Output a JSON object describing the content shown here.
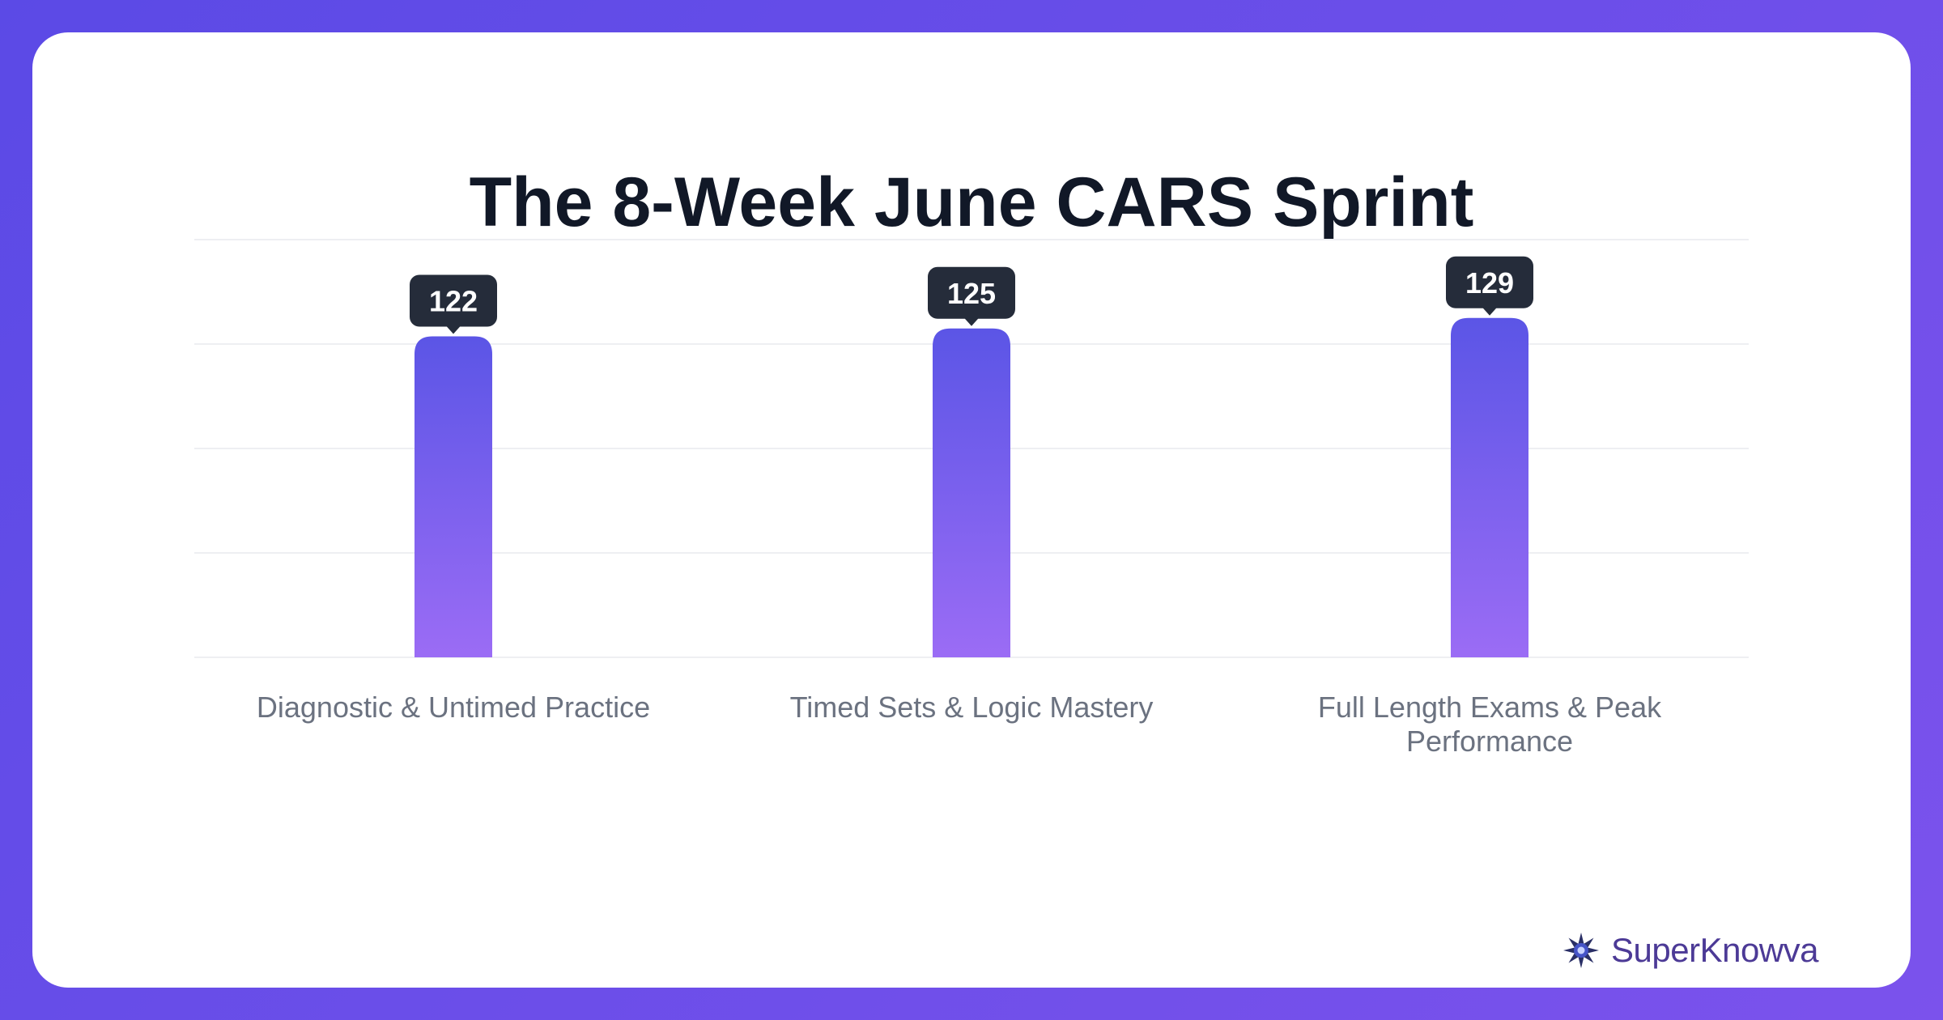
{
  "chart_data": {
    "type": "bar",
    "title": "The 8-Week June CARS Sprint",
    "xlabel": "",
    "ylabel": "",
    "categories": [
      "Diagnostic & Untimed Practice",
      "Timed Sets & Logic Mastery",
      "Full Length Exams & Peak Performance"
    ],
    "values": [
      122,
      125,
      129
    ],
    "ylim": [
      0,
      135
    ],
    "grid": true,
    "legend": "none",
    "data_labels": true,
    "colors": {
      "bar_top": "#5b55e6",
      "bar_bottom": "#9b6cf5",
      "label_bg": "#252c3a",
      "label_text": "#ffffff",
      "category_text": "#6b7280",
      "grid": "#eeeff2"
    }
  },
  "brand": {
    "name": "SuperKnowva",
    "logo_icon": "starburst-logo-icon"
  }
}
